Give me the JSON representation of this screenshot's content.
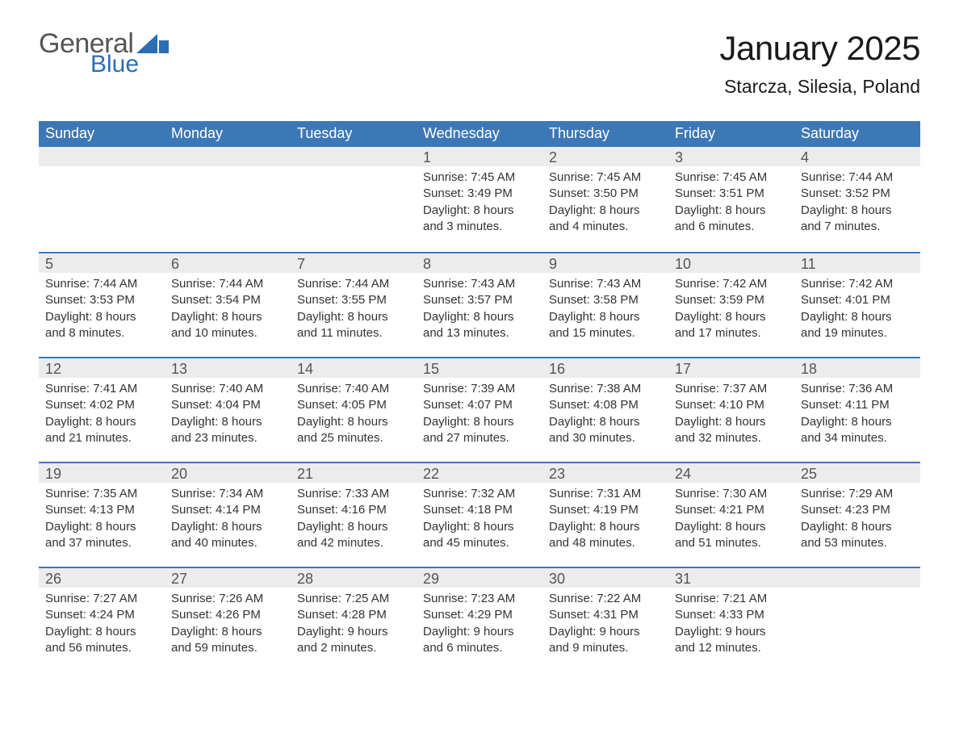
{
  "logo": {
    "word1": "General",
    "word2": "Blue",
    "mark_color": "#2a6eb4"
  },
  "title": "January 2025",
  "location": "Starcza, Silesia, Poland",
  "colors": {
    "header_bg": "#3d78b6",
    "week_border": "#3d78b6",
    "stripe": "#ececec",
    "page_bg": "#ffffff",
    "weekday_text": "#ffffff",
    "daynum_text": "#555555",
    "body_text": "#333333",
    "title_text": "#1a1a1a"
  },
  "fonts": {
    "family": "Arial",
    "title_size_pt": 32,
    "location_size_pt": 17,
    "weekday_size_pt": 14,
    "daynum_size_pt": 14,
    "body_size_pt": 11
  },
  "weekdays": [
    "Sunday",
    "Monday",
    "Tuesday",
    "Wednesday",
    "Thursday",
    "Friday",
    "Saturday"
  ],
  "grid": {
    "rows": 5,
    "cols": 7,
    "start_index": 3
  },
  "labels": {
    "sunrise": "Sunrise:",
    "sunset": "Sunset:",
    "daylight": "Daylight:"
  },
  "days": [
    {
      "n": 1,
      "sunrise": "7:45 AM",
      "sunset": "3:49 PM",
      "daylight": "8 hours and 3 minutes."
    },
    {
      "n": 2,
      "sunrise": "7:45 AM",
      "sunset": "3:50 PM",
      "daylight": "8 hours and 4 minutes."
    },
    {
      "n": 3,
      "sunrise": "7:45 AM",
      "sunset": "3:51 PM",
      "daylight": "8 hours and 6 minutes."
    },
    {
      "n": 4,
      "sunrise": "7:44 AM",
      "sunset": "3:52 PM",
      "daylight": "8 hours and 7 minutes."
    },
    {
      "n": 5,
      "sunrise": "7:44 AM",
      "sunset": "3:53 PM",
      "daylight": "8 hours and 8 minutes."
    },
    {
      "n": 6,
      "sunrise": "7:44 AM",
      "sunset": "3:54 PM",
      "daylight": "8 hours and 10 minutes."
    },
    {
      "n": 7,
      "sunrise": "7:44 AM",
      "sunset": "3:55 PM",
      "daylight": "8 hours and 11 minutes."
    },
    {
      "n": 8,
      "sunrise": "7:43 AM",
      "sunset": "3:57 PM",
      "daylight": "8 hours and 13 minutes."
    },
    {
      "n": 9,
      "sunrise": "7:43 AM",
      "sunset": "3:58 PM",
      "daylight": "8 hours and 15 minutes."
    },
    {
      "n": 10,
      "sunrise": "7:42 AM",
      "sunset": "3:59 PM",
      "daylight": "8 hours and 17 minutes."
    },
    {
      "n": 11,
      "sunrise": "7:42 AM",
      "sunset": "4:01 PM",
      "daylight": "8 hours and 19 minutes."
    },
    {
      "n": 12,
      "sunrise": "7:41 AM",
      "sunset": "4:02 PM",
      "daylight": "8 hours and 21 minutes."
    },
    {
      "n": 13,
      "sunrise": "7:40 AM",
      "sunset": "4:04 PM",
      "daylight": "8 hours and 23 minutes."
    },
    {
      "n": 14,
      "sunrise": "7:40 AM",
      "sunset": "4:05 PM",
      "daylight": "8 hours and 25 minutes."
    },
    {
      "n": 15,
      "sunrise": "7:39 AM",
      "sunset": "4:07 PM",
      "daylight": "8 hours and 27 minutes."
    },
    {
      "n": 16,
      "sunrise": "7:38 AM",
      "sunset": "4:08 PM",
      "daylight": "8 hours and 30 minutes."
    },
    {
      "n": 17,
      "sunrise": "7:37 AM",
      "sunset": "4:10 PM",
      "daylight": "8 hours and 32 minutes."
    },
    {
      "n": 18,
      "sunrise": "7:36 AM",
      "sunset": "4:11 PM",
      "daylight": "8 hours and 34 minutes."
    },
    {
      "n": 19,
      "sunrise": "7:35 AM",
      "sunset": "4:13 PM",
      "daylight": "8 hours and 37 minutes."
    },
    {
      "n": 20,
      "sunrise": "7:34 AM",
      "sunset": "4:14 PM",
      "daylight": "8 hours and 40 minutes."
    },
    {
      "n": 21,
      "sunrise": "7:33 AM",
      "sunset": "4:16 PM",
      "daylight": "8 hours and 42 minutes."
    },
    {
      "n": 22,
      "sunrise": "7:32 AM",
      "sunset": "4:18 PM",
      "daylight": "8 hours and 45 minutes."
    },
    {
      "n": 23,
      "sunrise": "7:31 AM",
      "sunset": "4:19 PM",
      "daylight": "8 hours and 48 minutes."
    },
    {
      "n": 24,
      "sunrise": "7:30 AM",
      "sunset": "4:21 PM",
      "daylight": "8 hours and 51 minutes."
    },
    {
      "n": 25,
      "sunrise": "7:29 AM",
      "sunset": "4:23 PM",
      "daylight": "8 hours and 53 minutes."
    },
    {
      "n": 26,
      "sunrise": "7:27 AM",
      "sunset": "4:24 PM",
      "daylight": "8 hours and 56 minutes."
    },
    {
      "n": 27,
      "sunrise": "7:26 AM",
      "sunset": "4:26 PM",
      "daylight": "8 hours and 59 minutes."
    },
    {
      "n": 28,
      "sunrise": "7:25 AM",
      "sunset": "4:28 PM",
      "daylight": "9 hours and 2 minutes."
    },
    {
      "n": 29,
      "sunrise": "7:23 AM",
      "sunset": "4:29 PM",
      "daylight": "9 hours and 6 minutes."
    },
    {
      "n": 30,
      "sunrise": "7:22 AM",
      "sunset": "4:31 PM",
      "daylight": "9 hours and 9 minutes."
    },
    {
      "n": 31,
      "sunrise": "7:21 AM",
      "sunset": "4:33 PM",
      "daylight": "9 hours and 12 minutes."
    }
  ]
}
